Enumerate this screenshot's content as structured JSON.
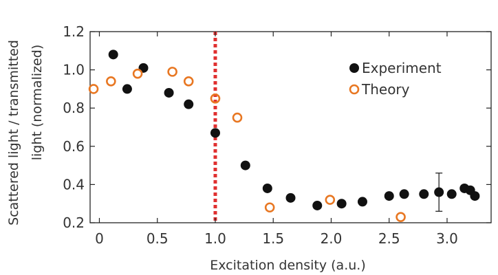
{
  "chart_data": {
    "type": "scatter",
    "title": "",
    "xlabel": "Excitation density (a.u.)",
    "ylabel_lines": [
      "Scattered light / transmitted",
      "light  (normalized)"
    ],
    "xlim": [
      -0.08,
      3.38
    ],
    "ylim": [
      0.2,
      1.2
    ],
    "xticks": [
      0,
      0.5,
      1.0,
      1.5,
      2.0,
      2.5,
      3.0
    ],
    "xtick_labels": [
      "0",
      "0.5",
      "1.0",
      "1.5",
      "2.0",
      "2.5",
      "3.0"
    ],
    "yticks": [
      0.2,
      0.4,
      0.6,
      0.8,
      1.0,
      1.2
    ],
    "ytick_labels": [
      "0.2",
      "0.4",
      "0.6",
      "0.8",
      "1.0",
      "1.2"
    ],
    "grid": false,
    "legend_position": "top-right",
    "threshold_line": {
      "x": 1.0,
      "color": "#e03030",
      "style": "dotted"
    },
    "series": [
      {
        "name": "Experiment",
        "marker": "filled-circle",
        "color": "#111111",
        "x": [
          0.12,
          0.24,
          0.38,
          0.6,
          0.77,
          1.0,
          1.26,
          1.45,
          1.65,
          1.88,
          2.09,
          2.27,
          2.5,
          2.63,
          2.8,
          2.93,
          3.04,
          3.15,
          3.2,
          3.24
        ],
        "y": [
          1.08,
          0.9,
          1.01,
          0.88,
          0.82,
          0.67,
          0.5,
          0.38,
          0.33,
          0.29,
          0.3,
          0.31,
          0.34,
          0.35,
          0.35,
          0.36,
          0.35,
          0.38,
          0.37,
          0.34
        ]
      },
      {
        "name": "Theory",
        "marker": "open-circle",
        "color": "#e87722",
        "x": [
          -0.05,
          0.1,
          0.33,
          0.63,
          0.77,
          1.0,
          1.19,
          1.47,
          1.99,
          2.6
        ],
        "y": [
          0.9,
          0.94,
          0.98,
          0.99,
          0.94,
          0.85,
          0.75,
          0.28,
          0.32,
          0.23
        ]
      }
    ],
    "error_bar": {
      "x": 2.93,
      "y": 0.36,
      "low": 0.26,
      "high": 0.46
    }
  }
}
